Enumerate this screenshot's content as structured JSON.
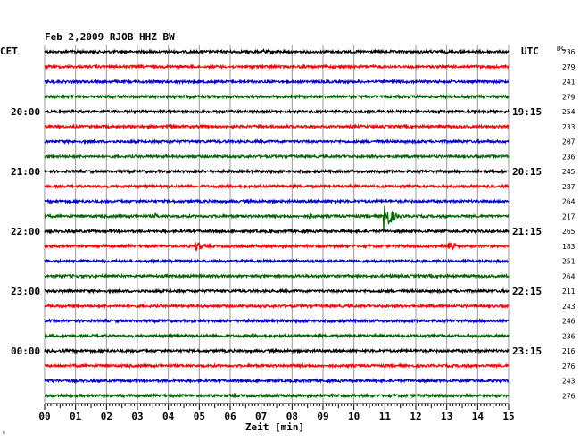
{
  "chart_data": {
    "type": "line",
    "title": "Feb 2,2009   RJOB HHZ BW",
    "left_timezone": "CET",
    "right_timezone": "UTC",
    "dc_label": "DC",
    "xlabel": "Zeit [min]",
    "x_ticks": [
      "00",
      "01",
      "02",
      "03",
      "04",
      "05",
      "06",
      "07",
      "08",
      "09",
      "10",
      "11",
      "12",
      "13",
      "14",
      "15"
    ],
    "xlim": [
      0,
      15
    ],
    "trace_colors": [
      "#000000",
      "#ff0000",
      "#0000cc",
      "#006600"
    ],
    "left_time_labels": [
      {
        "trace": 4,
        "text": "20:00"
      },
      {
        "trace": 8,
        "text": "21:00"
      },
      {
        "trace": 12,
        "text": "22:00"
      },
      {
        "trace": 16,
        "text": "23:00"
      },
      {
        "trace": 20,
        "text": "00:00"
      }
    ],
    "right_time_labels": [
      {
        "trace": 4,
        "text": "19:15"
      },
      {
        "trace": 8,
        "text": "20:15"
      },
      {
        "trace": 12,
        "text": "21:15"
      },
      {
        "trace": 16,
        "text": "22:15"
      },
      {
        "trace": 20,
        "text": "23:15"
      }
    ],
    "dc_values": [
      236,
      279,
      241,
      279,
      254,
      233,
      207,
      236,
      245,
      287,
      264,
      217,
      265,
      183,
      251,
      264,
      211,
      243,
      246,
      236,
      216,
      276,
      243,
      276
    ],
    "events": [
      {
        "trace": 0,
        "minute": 7.1,
        "amplitude": 3
      },
      {
        "trace": 11,
        "minute": 3.6,
        "amplitude": 3
      },
      {
        "trace": 11,
        "minute": 8.6,
        "amplitude": 3
      },
      {
        "trace": 11,
        "minute": 11.0,
        "amplitude": 18
      },
      {
        "trace": 13,
        "minute": 4.9,
        "amplitude": 6
      },
      {
        "trace": 13,
        "minute": 13.1,
        "amplitude": 8
      }
    ],
    "footer_mark": "ᴬ"
  }
}
